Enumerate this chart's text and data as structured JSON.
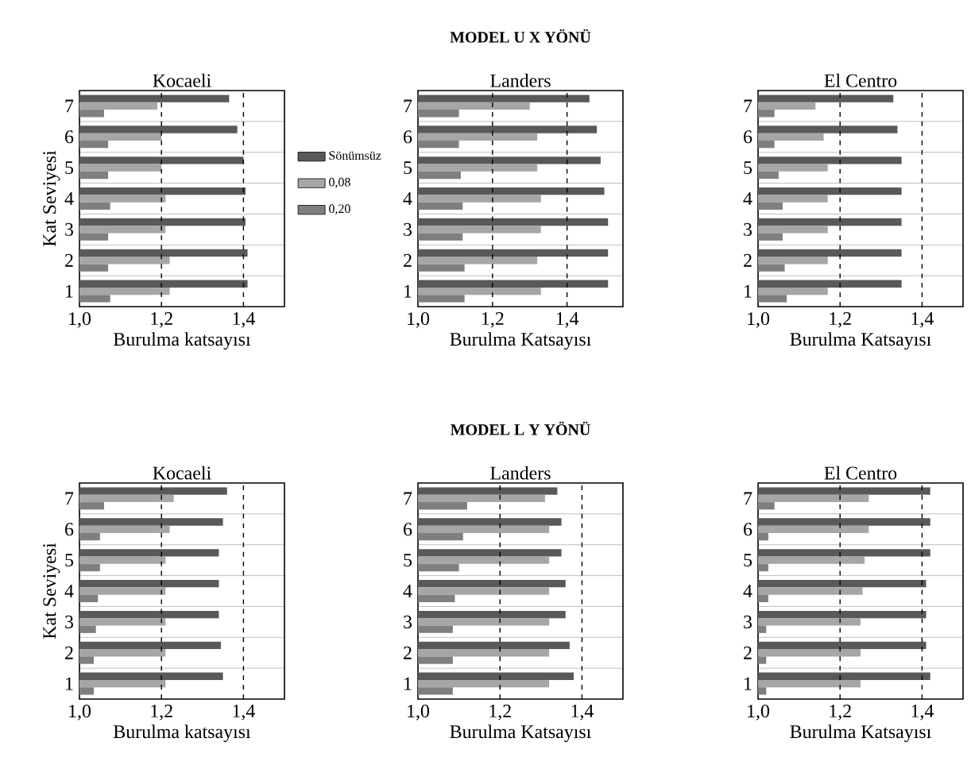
{
  "chart_data": [
    {
      "type": "bar",
      "orientation": "horizontal",
      "title": "Kocaeli",
      "xlabel": "Burulma katsayısı",
      "ylabel": "Kat Seviyesi",
      "categories": [
        "7",
        "6",
        "5",
        "4",
        "3",
        "2",
        "1"
      ],
      "xlim": [
        1.0,
        1.5
      ],
      "xticks": [
        {
          "value": 1.0,
          "label": "1,0"
        },
        {
          "value": 1.2,
          "label": "1,2"
        },
        {
          "value": 1.4,
          "label": "1,4"
        }
      ],
      "grid": "y",
      "legend": "right",
      "ref_lines": [
        {
          "axis": "x",
          "value": 1.2,
          "line_style": "dashed"
        },
        {
          "axis": "x",
          "value": 1.4,
          "line_style": "dashed"
        }
      ],
      "series": [
        {
          "name": "Sönümsüz",
          "color": "#595959",
          "values": [
            1.365,
            1.385,
            1.4,
            1.405,
            1.405,
            1.41,
            1.41
          ]
        },
        {
          "name": "0,08",
          "color": "#a6a6a6",
          "values": [
            1.19,
            1.2,
            1.2,
            1.21,
            1.21,
            1.22,
            1.22
          ]
        },
        {
          "name": "0,20",
          "color": "#7f7f7f",
          "values": [
            1.06,
            1.07,
            1.07,
            1.075,
            1.07,
            1.07,
            1.075
          ]
        }
      ]
    },
    {
      "type": "bar",
      "orientation": "horizontal",
      "title": "Landers",
      "subtitle": "MODEL U X YÖNÜ",
      "xlabel": "Burulma Katsayısı",
      "categories": [
        "7",
        "6",
        "5",
        "4",
        "3",
        "2",
        "1"
      ],
      "xlim": [
        1.0,
        1.55
      ],
      "xticks": [
        {
          "value": 1.0,
          "label": "1,0"
        },
        {
          "value": 1.2,
          "label": "1,2"
        },
        {
          "value": 1.4,
          "label": "1,4"
        }
      ],
      "grid": "y",
      "ref_lines": [
        {
          "axis": "x",
          "value": 1.2,
          "line_style": "dashed"
        },
        {
          "axis": "x",
          "value": 1.4,
          "line_style": "dashed"
        }
      ],
      "series": [
        {
          "color": "#595959",
          "values": [
            1.46,
            1.48,
            1.49,
            1.5,
            1.51,
            1.51,
            1.51
          ]
        },
        {
          "color": "#a6a6a6",
          "values": [
            1.3,
            1.32,
            1.32,
            1.33,
            1.33,
            1.32,
            1.33
          ]
        },
        {
          "color": "#7f7f7f",
          "values": [
            1.11,
            1.11,
            1.115,
            1.12,
            1.12,
            1.125,
            1.125
          ]
        }
      ]
    },
    {
      "type": "bar",
      "orientation": "horizontal",
      "title": "El Centro",
      "xlabel": "Burulma Katsayısı",
      "categories": [
        "7",
        "6",
        "5",
        "4",
        "3",
        "2",
        "1"
      ],
      "xlim": [
        1.0,
        1.5
      ],
      "xticks": [
        {
          "value": 1.0,
          "label": "1,0"
        },
        {
          "value": 1.2,
          "label": "1,2"
        },
        {
          "value": 1.4,
          "label": "1,4"
        }
      ],
      "grid": "y",
      "ref_lines": [
        {
          "axis": "x",
          "value": 1.2,
          "line_style": "dashed"
        },
        {
          "axis": "x",
          "value": 1.4,
          "line_style": "dashed"
        }
      ],
      "series": [
        {
          "color": "#595959",
          "values": [
            1.33,
            1.34,
            1.35,
            1.35,
            1.35,
            1.35,
            1.35
          ]
        },
        {
          "color": "#a6a6a6",
          "values": [
            1.14,
            1.16,
            1.17,
            1.17,
            1.17,
            1.17,
            1.17
          ]
        },
        {
          "color": "#7f7f7f",
          "values": [
            1.04,
            1.04,
            1.05,
            1.06,
            1.06,
            1.065,
            1.07
          ]
        }
      ]
    },
    {
      "type": "bar",
      "orientation": "horizontal",
      "title": "Kocaeli",
      "xlabel": "Burulma katsayısı",
      "ylabel": "Kat Seviyesi",
      "categories": [
        "7",
        "6",
        "5",
        "4",
        "3",
        "2",
        "1"
      ],
      "xlim": [
        1.0,
        1.5
      ],
      "xticks": [
        {
          "value": 1.0,
          "label": "1,0"
        },
        {
          "value": 1.2,
          "label": "1,2"
        },
        {
          "value": 1.4,
          "label": "1,4"
        }
      ],
      "grid": "y",
      "ref_lines": [
        {
          "axis": "x",
          "value": 1.2,
          "line_style": "dashed"
        },
        {
          "axis": "x",
          "value": 1.4,
          "line_style": "dashed"
        }
      ],
      "series": [
        {
          "color": "#595959",
          "values": [
            1.36,
            1.35,
            1.34,
            1.34,
            1.34,
            1.345,
            1.35
          ]
        },
        {
          "color": "#a6a6a6",
          "values": [
            1.23,
            1.22,
            1.21,
            1.21,
            1.21,
            1.21,
            1.21
          ]
        },
        {
          "color": "#7f7f7f",
          "values": [
            1.06,
            1.05,
            1.05,
            1.045,
            1.04,
            1.035,
            1.035
          ]
        }
      ]
    },
    {
      "type": "bar",
      "orientation": "horizontal",
      "title": "Landers",
      "subtitle": "MODEL L Y YÖNÜ",
      "xlabel": "Burulma Katsayısı",
      "categories": [
        "7",
        "6",
        "5",
        "4",
        "3",
        "2",
        "1"
      ],
      "xlim": [
        1.0,
        1.5
      ],
      "xticks": [
        {
          "value": 1.0,
          "label": "1,0"
        },
        {
          "value": 1.2,
          "label": "1,2"
        },
        {
          "value": 1.4,
          "label": "1,4"
        }
      ],
      "grid": "y",
      "ref_lines": [
        {
          "axis": "x",
          "value": 1.2,
          "line_style": "dashed"
        },
        {
          "axis": "x",
          "value": 1.4,
          "line_style": "dashed"
        }
      ],
      "series": [
        {
          "color": "#595959",
          "values": [
            1.34,
            1.35,
            1.35,
            1.36,
            1.36,
            1.37,
            1.38
          ]
        },
        {
          "color": "#a6a6a6",
          "values": [
            1.31,
            1.32,
            1.32,
            1.32,
            1.32,
            1.32,
            1.32
          ]
        },
        {
          "color": "#7f7f7f",
          "values": [
            1.12,
            1.11,
            1.1,
            1.09,
            1.085,
            1.085,
            1.085
          ]
        }
      ]
    },
    {
      "type": "bar",
      "orientation": "horizontal",
      "title": "El Centro",
      "xlabel": "Burulma Katsayısı",
      "categories": [
        "7",
        "6",
        "5",
        "4",
        "3",
        "2",
        "1"
      ],
      "xlim": [
        1.0,
        1.5
      ],
      "xticks": [
        {
          "value": 1.0,
          "label": "1,0"
        },
        {
          "value": 1.2,
          "label": "1,2"
        },
        {
          "value": 1.4,
          "label": "1,4"
        }
      ],
      "grid": "y",
      "ref_lines": [
        {
          "axis": "x",
          "value": 1.2,
          "line_style": "dashed"
        },
        {
          "axis": "x",
          "value": 1.4,
          "line_style": "dashed"
        }
      ],
      "series": [
        {
          "color": "#595959",
          "values": [
            1.42,
            1.42,
            1.42,
            1.41,
            1.41,
            1.41,
            1.42
          ]
        },
        {
          "color": "#a6a6a6",
          "values": [
            1.27,
            1.27,
            1.26,
            1.255,
            1.25,
            1.25,
            1.25
          ]
        },
        {
          "color": "#7f7f7f",
          "values": [
            1.04,
            1.025,
            1.025,
            1.025,
            1.02,
            1.02,
            1.02
          ]
        }
      ]
    }
  ]
}
